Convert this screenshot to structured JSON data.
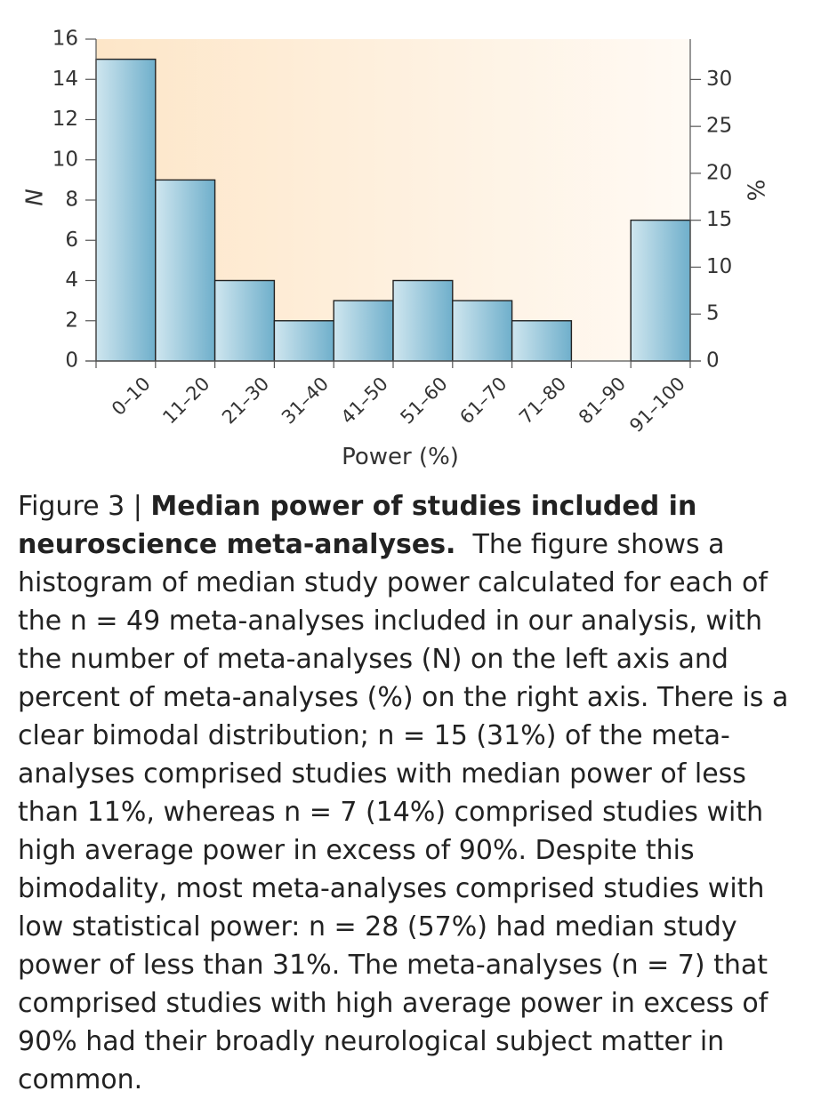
{
  "chart_data": {
    "type": "bar",
    "categories": [
      "0–10",
      "11–20",
      "21–30",
      "31–40",
      "41–50",
      "51–60",
      "61–70",
      "71–80",
      "81–90",
      "91–100"
    ],
    "values": [
      15,
      9,
      4,
      2,
      3,
      4,
      3,
      2,
      0,
      7
    ],
    "xlabel": "Power (%)",
    "ylabel_left": "N",
    "ylabel_right": "%",
    "ylim_left": [
      0,
      16
    ],
    "yticks_left": [
      "0",
      "2",
      "4",
      "6",
      "8",
      "10",
      "12",
      "14",
      "16"
    ],
    "ylim_right": [
      0,
      34.3
    ],
    "yticks_right": [
      "0",
      "5",
      "10",
      "15",
      "20",
      "25",
      "30"
    ],
    "grid": false,
    "bar_color": "#8cc3d8",
    "background_color": "#fde9cf"
  },
  "caption": {
    "label": "Figure 3 | ",
    "title": "Median power of studies included in neuroscience meta-analyses.",
    "body": "The figure shows a histogram of median study power calculated for each of the n = 49 meta-analyses included in our analysis, with the number of meta-analyses (N) on the left axis and percent of meta-analyses (%) on the right axis. There is a clear bimodal distribution; n = 15 (31%) of the meta-analyses comprised studies with median power of less than 11%, whereas n = 7 (14%) comprised studies with high average power in excess of 90%. Despite this bimodality, most meta-analyses comprised studies with low statistical power: n = 28 (57%) had median study power of less than 31%. The meta-analyses (n = 7) that comprised studies with high average power in excess of 90% had their broadly neurological subject matter in common."
  }
}
